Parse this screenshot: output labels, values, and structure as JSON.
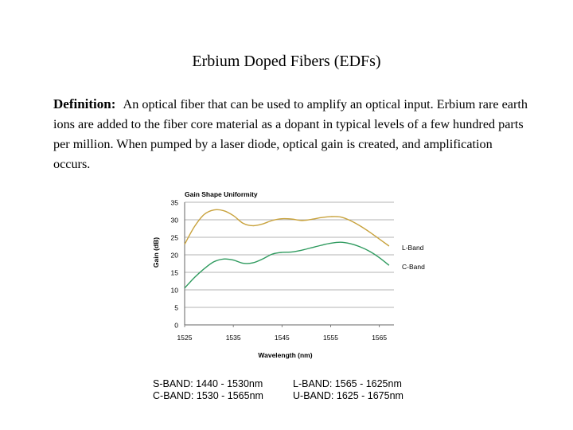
{
  "slide": {
    "title": "Erbium Doped Fibers (EDFs)",
    "definition_term": "Definition:",
    "definition_text": "An optical fiber that can be used to amplify an optical input. Erbium rare earth ions are added to the fiber core material as a dopant in typical levels of a few hundred parts per million. When pumped by a laser diode, optical gain is created, and amplification occurs."
  },
  "chart_data": {
    "type": "line",
    "title": "Gain Shape Uniformity",
    "xlabel": "Wavelength (nm)",
    "ylabel": "Gain (dB)",
    "xlim": [
      1525,
      1568
    ],
    "ylim": [
      0,
      35
    ],
    "x_ticks": [
      "1525",
      "1535",
      "1545",
      "1555",
      "1565"
    ],
    "y_ticks": [
      "0",
      "5",
      "10",
      "15",
      "20",
      "25",
      "30",
      "35"
    ],
    "grid": "horizontal",
    "series": [
      {
        "name": "L-Band",
        "color": "#c8a23c",
        "x": [
          1525,
          1527,
          1529,
          1531,
          1533,
          1535,
          1537,
          1539,
          1541,
          1543,
          1545,
          1547,
          1549,
          1551,
          1553,
          1555,
          1557,
          1559,
          1561,
          1563,
          1565,
          1567
        ],
        "y": [
          23,
          28,
          31.5,
          32.8,
          32.6,
          31.2,
          29,
          28.3,
          28.8,
          29.8,
          30.3,
          30.2,
          29.8,
          30.1,
          30.6,
          30.9,
          30.8,
          29.8,
          28.3,
          26.5,
          24.5,
          22.5
        ]
      },
      {
        "name": "C-Band",
        "color": "#2e9a5e",
        "x": [
          1525,
          1527,
          1529,
          1531,
          1533,
          1535,
          1537,
          1539,
          1541,
          1543,
          1545,
          1547,
          1549,
          1551,
          1553,
          1555,
          1557,
          1559,
          1561,
          1563,
          1565,
          1567
        ],
        "y": [
          10.5,
          13.5,
          16,
          18,
          18.8,
          18.5,
          17.6,
          17.7,
          18.8,
          20.2,
          20.7,
          20.8,
          21.3,
          22,
          22.7,
          23.3,
          23.6,
          23.2,
          22.3,
          21,
          19.2,
          17
        ]
      }
    ]
  },
  "band_info": {
    "left": [
      "S-BAND: 1440 - 1530nm",
      "C-BAND: 1530 - 1565nm"
    ],
    "right": [
      "L-BAND:  1565 - 1625nm",
      "U-BAND:  1625 - 1675nm"
    ]
  }
}
